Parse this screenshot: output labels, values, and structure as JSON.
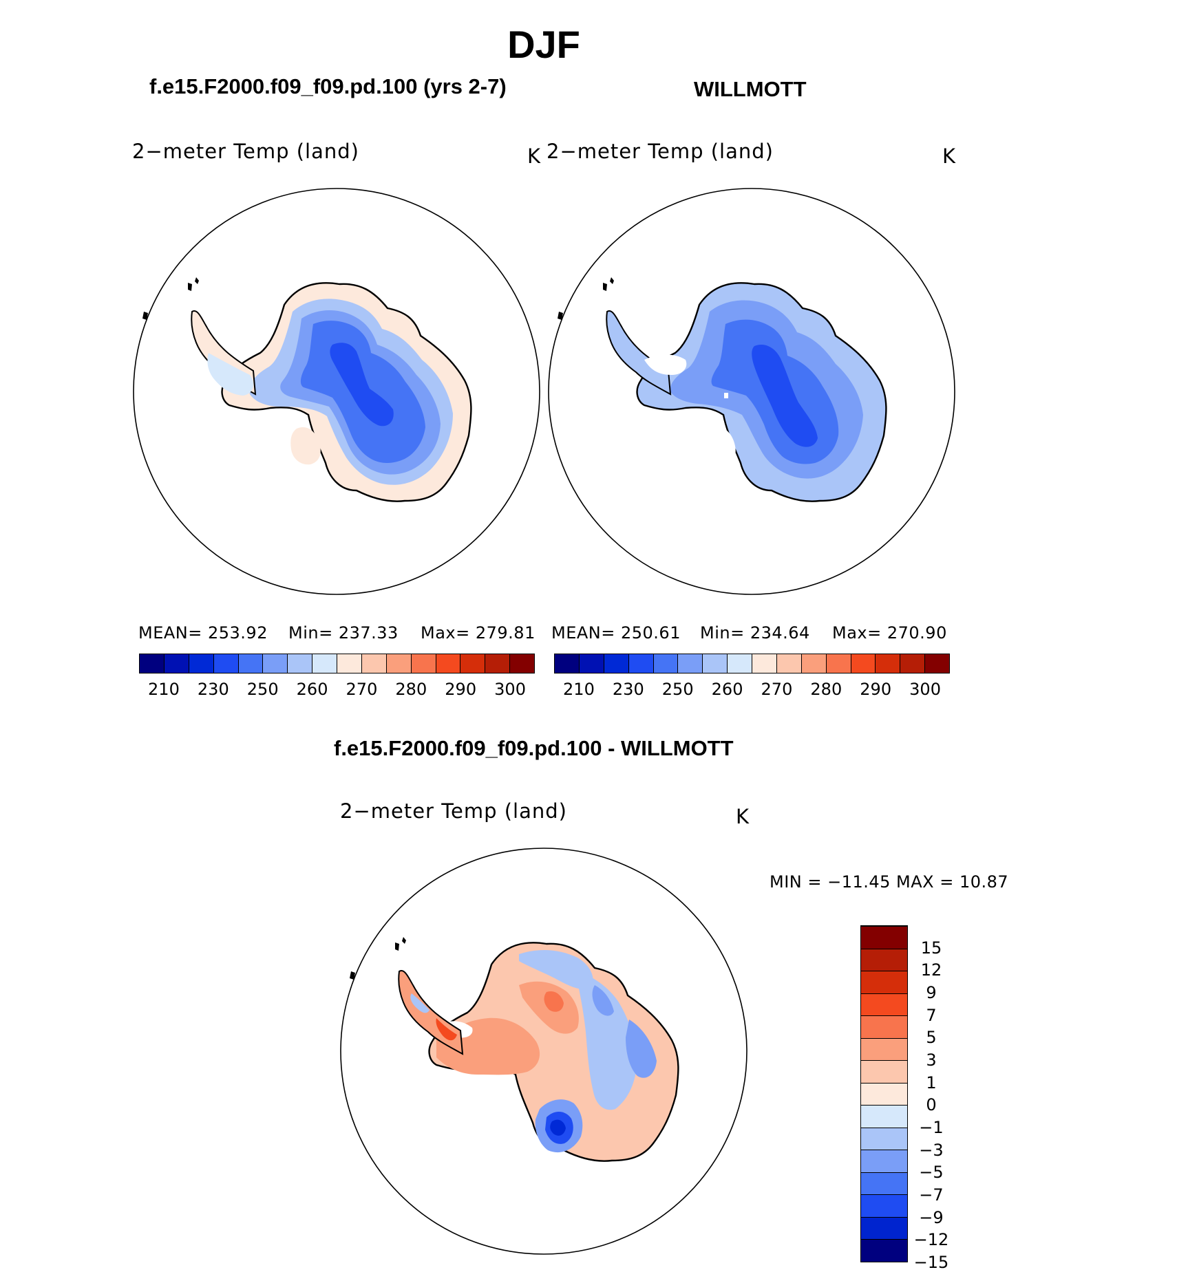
{
  "page": {
    "season": "DJF"
  },
  "panels": {
    "left": {
      "case_title": "f.e15.F2000.f09_f09.pd.100 (yrs 2-7)",
      "variable": "2−meter Temp (land)",
      "units": "K",
      "stats": {
        "mean": "MEAN=  253.92",
        "min": "Min=  237.33",
        "max": "Max=  279.81"
      }
    },
    "right": {
      "case_title": "WILLMOTT",
      "variable": "2−meter Temp (land)",
      "units": "K",
      "stats": {
        "mean": "MEAN=  250.61",
        "min": "Min=  234.64",
        "max": "Max=  270.90"
      }
    },
    "diff": {
      "case_title": "f.e15.F2000.f09_f09.pd.100 - WILLMOTT",
      "variable": "2−meter Temp (land)",
      "units": "K",
      "stats": {
        "minmax": "MIN  =  −11.45  MAX  =    10.87"
      }
    }
  },
  "colorbar_abs": {
    "colors": [
      "#00007f",
      "#0011b3",
      "#0029d6",
      "#1f4cf2",
      "#4574f5",
      "#7a9ef7",
      "#aac5f8",
      "#d6e8fb",
      "#fde9dc",
      "#fcc7ae",
      "#fa9f7c",
      "#f8744d",
      "#f44a1f",
      "#d52e0a",
      "#b51e06",
      "#830000"
    ],
    "tick_labels": [
      "210",
      "230",
      "250",
      "260",
      "270",
      "280",
      "290",
      "300"
    ]
  },
  "colorbar_diff": {
    "colors": [
      "#00007f",
      "#0024cf",
      "#1f4cf2",
      "#4574f5",
      "#7a9ef7",
      "#aac5f8",
      "#d6e8fb",
      "#fde9dc",
      "#fcc7ae",
      "#fa9f7c",
      "#f8744d",
      "#f44a1f",
      "#d52e0a",
      "#b51e06",
      "#830000"
    ],
    "tick_labels": [
      "15",
      "12",
      "9",
      "7",
      "5",
      "3",
      "1",
      "0",
      "−1",
      "−3",
      "−5",
      "−7",
      "−9",
      "−12",
      "−15"
    ]
  },
  "map_colors": {
    "deep": "#1f4cf2",
    "mid": "#4574f5",
    "light": "#7a9ef7",
    "pale": "#aac5f8",
    "icy": "#d6e8fb",
    "warm_pale": "#fde9dc",
    "warm_light": "#fcc7ae",
    "warm_mid": "#fa9f7c",
    "warm_strong": "#f8744d",
    "dark_blue": "#0029d6"
  }
}
